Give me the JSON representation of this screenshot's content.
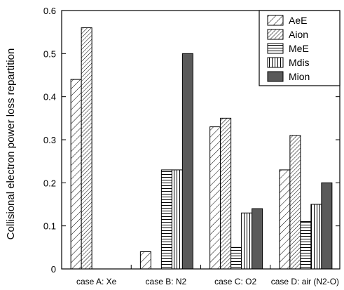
{
  "chart_data": {
    "type": "bar",
    "title": "",
    "xlabel": "",
    "ylabel": "Collisional electron power loss repartition",
    "ylim": [
      0,
      0.6
    ],
    "yticks": [
      "0",
      "0.1",
      "0.2",
      "0.3",
      "0.4",
      "0.5",
      "0.6"
    ],
    "grid": false,
    "legend_position": "top-right",
    "categories": [
      "case A: Xe",
      "case B: N2",
      "case C: O2",
      "case D: air (N2-O)"
    ],
    "series": [
      {
        "name": "AeE",
        "pattern": "diagonal-sparse",
        "values": [
          0.44,
          0.04,
          0.33,
          0.23
        ]
      },
      {
        "name": "Aion",
        "pattern": "diagonal-dense",
        "values": [
          0.56,
          0.0,
          0.35,
          0.31
        ]
      },
      {
        "name": "MeE",
        "pattern": "horizontal-lines",
        "values": [
          0.0,
          0.23,
          0.05,
          0.11
        ]
      },
      {
        "name": "Mdis",
        "pattern": "vertical-lines",
        "values": [
          0.0,
          0.23,
          0.13,
          0.15
        ]
      },
      {
        "name": "Mion",
        "pattern": "solid",
        "color": "#5a5a5a",
        "values": [
          0.0,
          0.5,
          0.14,
          0.2
        ]
      }
    ]
  }
}
